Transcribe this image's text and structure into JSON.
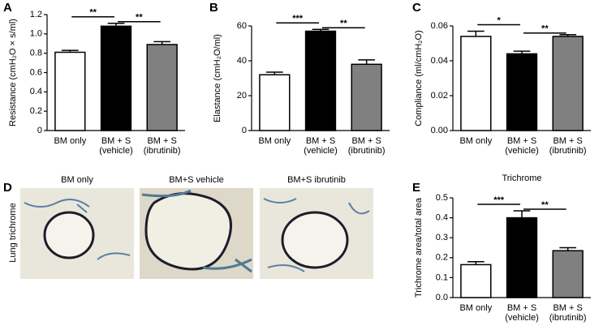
{
  "chart_data": [
    {
      "type": "bar",
      "panel": "A",
      "y_label": "Resistance (cmH₂O × s/ml)",
      "categories": [
        "BM only",
        "BM + S\n(vehicle)",
        "BM + S\n(ibrutinib)"
      ],
      "values": [
        0.81,
        1.08,
        0.89
      ],
      "errors": [
        0.02,
        0.03,
        0.03
      ],
      "colors": [
        "#ffffff",
        "#000000",
        "#808080"
      ],
      "ylim": [
        0,
        1.2
      ],
      "yticks": [
        0,
        0.2,
        0.4,
        0.6,
        0.8,
        {
          "value": 1.0,
          "label": "1.0"
        },
        1.2
      ],
      "significance": [
        "**",
        "**"
      ]
    },
    {
      "type": "bar",
      "panel": "B",
      "y_label": "Elastance (cmH₂O/ml)",
      "categories": [
        "BM only",
        "BM + S\n(vehicle)",
        "BM + S\n(ibrutinib)"
      ],
      "values": [
        32,
        57,
        38
      ],
      "errors": [
        1.5,
        1,
        2.5
      ],
      "colors": [
        "#ffffff",
        "#000000",
        "#808080"
      ],
      "ylim": [
        0,
        60
      ],
      "yticks": [
        0,
        20,
        40,
        60
      ],
      "significance": [
        "***",
        "**"
      ]
    },
    {
      "type": "bar",
      "panel": "C",
      "y_label": "Compliance (ml/cmH₂O)",
      "categories": [
        "BM only",
        "BM + S\n(vehicle)",
        "BM + S\n(ibrutinib)"
      ],
      "values": [
        0.054,
        0.044,
        0.054
      ],
      "errors": [
        0.003,
        0.0015,
        0.001
      ],
      "colors": [
        "#ffffff",
        "#000000",
        "#808080"
      ],
      "ylim": [
        0,
        0.06
      ],
      "yticks": [
        {
          "value": 0,
          "label": "0.00"
        },
        {
          "value": 0.02,
          "label": "0.02"
        },
        {
          "value": 0.04,
          "label": "0.04"
        },
        {
          "value": 0.06,
          "label": "0.06"
        }
      ],
      "significance": [
        "*",
        "**"
      ]
    },
    {
      "type": "bar",
      "panel": "E",
      "title": "Trichrome",
      "y_label": "Trichrome area/total area",
      "categories": [
        "BM only",
        "BM + S\n(vehicle)",
        "BM + S\n(ibrutinib)"
      ],
      "values": [
        0.165,
        0.4,
        0.235
      ],
      "errors": [
        0.015,
        0.035,
        0.015
      ],
      "colors": [
        "#ffffff",
        "#000000",
        "#808080"
      ],
      "ylim": [
        0,
        0.5
      ],
      "yticks": [
        {
          "value": 0,
          "label": "0.0"
        },
        0.1,
        0.2,
        0.3,
        0.4,
        0.5
      ],
      "significance": [
        "***",
        "**"
      ]
    }
  ],
  "panel_d": {
    "panel": "D",
    "y_label": "Lung trichrome",
    "images": [
      "BM only",
      "BM+S vehicle",
      "BM+S ibrutinib"
    ]
  }
}
